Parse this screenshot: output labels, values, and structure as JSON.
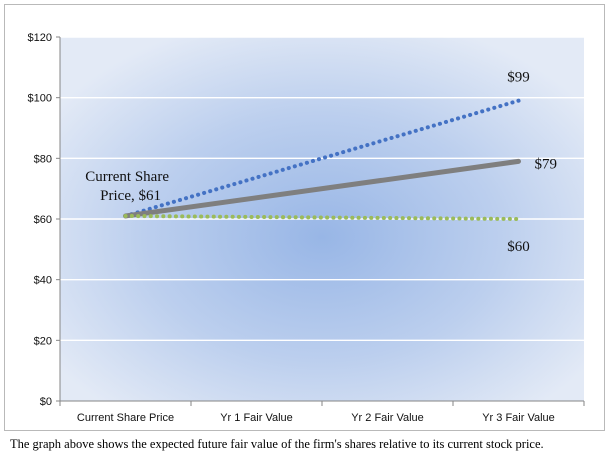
{
  "chart_data": {
    "type": "line",
    "categories": [
      "Current Share Price",
      "Yr 1 Fair Value",
      "Yr 2 Fair Value",
      "Yr 3 Fair Value"
    ],
    "x_tick_labels": [
      "Current Share Price",
      "Yr 1 Fair Value",
      "Yr 2 Fair Value",
      "Yr 3 Fair Value"
    ],
    "ylim": [
      0,
      120
    ],
    "y_ticks": [
      0,
      20,
      40,
      60,
      80,
      100,
      120
    ],
    "y_tick_labels": [
      "$0",
      "$20",
      "$40",
      "$60",
      "$80",
      "$100",
      "$120"
    ],
    "grid": true,
    "series": [
      {
        "color": "#4472c4",
        "style": "dotted",
        "x": [
          "Current Share Price",
          "Yr 3 Fair Value"
        ],
        "values": [
          61,
          99
        ],
        "end_label": "$99"
      },
      {
        "color": "#7f7f7f",
        "style": "solid",
        "x": [
          "Current Share Price",
          "Yr 3 Fair Value"
        ],
        "values": [
          61,
          79
        ],
        "end_label": "$79"
      },
      {
        "color": "#9bbb59",
        "style": "dotted",
        "x": [
          "Current Share Price",
          "Yr 3 Fair Value"
        ],
        "values": [
          61,
          60
        ],
        "end_label": "$60"
      }
    ],
    "annotations": [
      {
        "lines": [
          "Current Share",
          "Price, $61"
        ]
      }
    ]
  },
  "caption": "The graph above shows the expected future fair value of the firm's shares relative to its current stock price."
}
